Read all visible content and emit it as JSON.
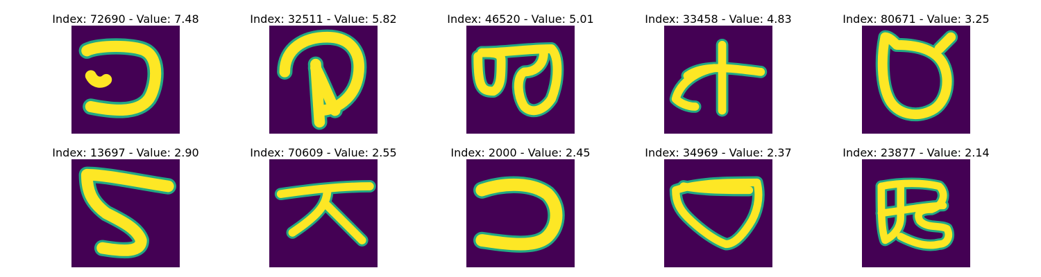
{
  "figure": {
    "background_color": "#ffffff",
    "colormap": [
      "#440154",
      "#3b528b",
      "#21918c",
      "#23a884",
      "#5ec962",
      "#fde725"
    ],
    "panels": [
      {
        "title": "Index: 72690 - Value: 7.48",
        "glyph": "character-1"
      },
      {
        "title": "Index: 32511 - Value: 5.82",
        "glyph": "character-2"
      },
      {
        "title": "Index: 46520 - Value: 5.01",
        "glyph": "character-3"
      },
      {
        "title": "Index: 33458 - Value: 4.83",
        "glyph": "character-4"
      },
      {
        "title": "Index: 80671 - Value: 3.25",
        "glyph": "character-5"
      },
      {
        "title": "Index: 13697 - Value: 2.90",
        "glyph": "character-6"
      },
      {
        "title": "Index: 70609 - Value: 2.55",
        "glyph": "character-7"
      },
      {
        "title": "Index: 2000 - Value: 2.45",
        "glyph": "character-8"
      },
      {
        "title": "Index: 34969 - Value: 2.37",
        "glyph": "character-9"
      },
      {
        "title": "Index: 23877 - Value: 2.14",
        "glyph": "character-10"
      }
    ]
  }
}
